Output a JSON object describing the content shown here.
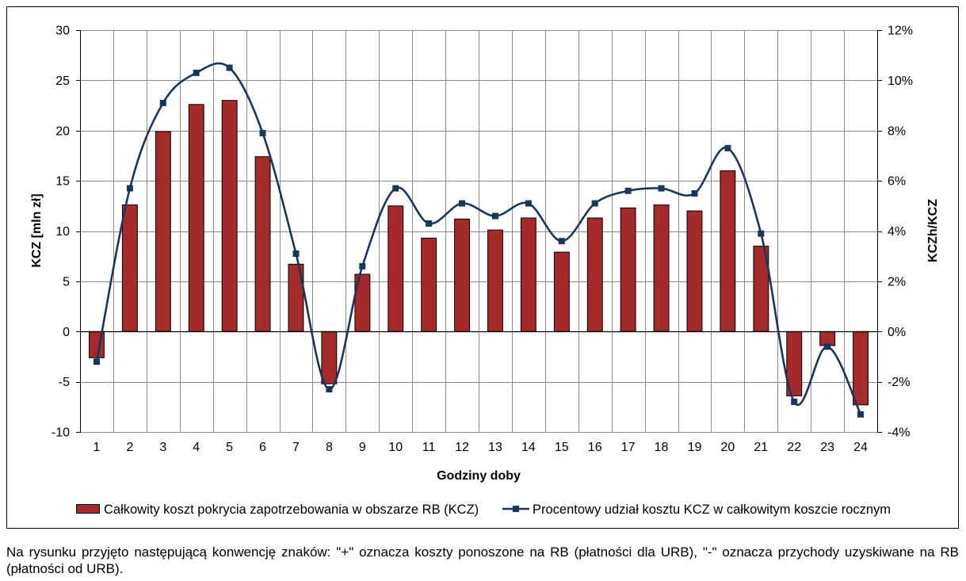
{
  "chart_data": {
    "type": "bar",
    "categories": [
      "1",
      "2",
      "3",
      "4",
      "5",
      "6",
      "7",
      "8",
      "9",
      "10",
      "11",
      "12",
      "13",
      "14",
      "15",
      "16",
      "17",
      "18",
      "19",
      "20",
      "21",
      "22",
      "23",
      "24"
    ],
    "series": [
      {
        "name": "Całkowity koszt pokrycia zapotrzebowania w obszarze RB (KCZ)",
        "type": "bar",
        "axis": "left",
        "values": [
          -2.6,
          12.6,
          19.9,
          22.6,
          23.0,
          17.4,
          6.7,
          -5.2,
          5.7,
          12.5,
          9.3,
          11.2,
          10.1,
          11.3,
          7.9,
          11.3,
          12.3,
          12.6,
          12.0,
          16.0,
          8.5,
          -6.4,
          -1.4,
          -7.3
        ]
      },
      {
        "name": "Procentowy udział kosztu KCZ w całkowitym koszcie rocznym",
        "type": "line",
        "axis": "right",
        "values": [
          -1.2,
          5.7,
          9.1,
          10.3,
          10.5,
          7.9,
          3.1,
          -2.3,
          2.6,
          5.7,
          4.3,
          5.1,
          4.6,
          5.1,
          3.6,
          5.1,
          5.6,
          5.7,
          5.5,
          7.3,
          3.9,
          -2.8,
          -0.6,
          -3.3
        ]
      }
    ],
    "xlabel": "Godziny doby",
    "ylabel": "KCZ [mln zł]",
    "y2label": "KCZh/KCZ",
    "ylim": [
      -10,
      30
    ],
    "yticks": [
      -10,
      -5,
      0,
      5,
      10,
      15,
      20,
      25,
      30
    ],
    "y2lim": [
      -4,
      12
    ],
    "y2ticks": [
      "-4%",
      "-2%",
      "0%",
      "2%",
      "4%",
      "6%",
      "8%",
      "10%",
      "12%"
    ],
    "grid": true,
    "legend": "bottom",
    "smooth_line": true,
    "colors": {
      "bar": "#a52a2a",
      "bar_outline": "#000000",
      "line": "#1b365d",
      "grid": "#8c8c8c",
      "axis": "#000000"
    }
  },
  "footnote": "Na rysunku przyjęto następującą konwencję znaków: \"+\" oznacza koszty ponoszone na RB (płatności dla URB), \"-\" oznacza przychody uzyskiwane na RB (płatności od URB)."
}
